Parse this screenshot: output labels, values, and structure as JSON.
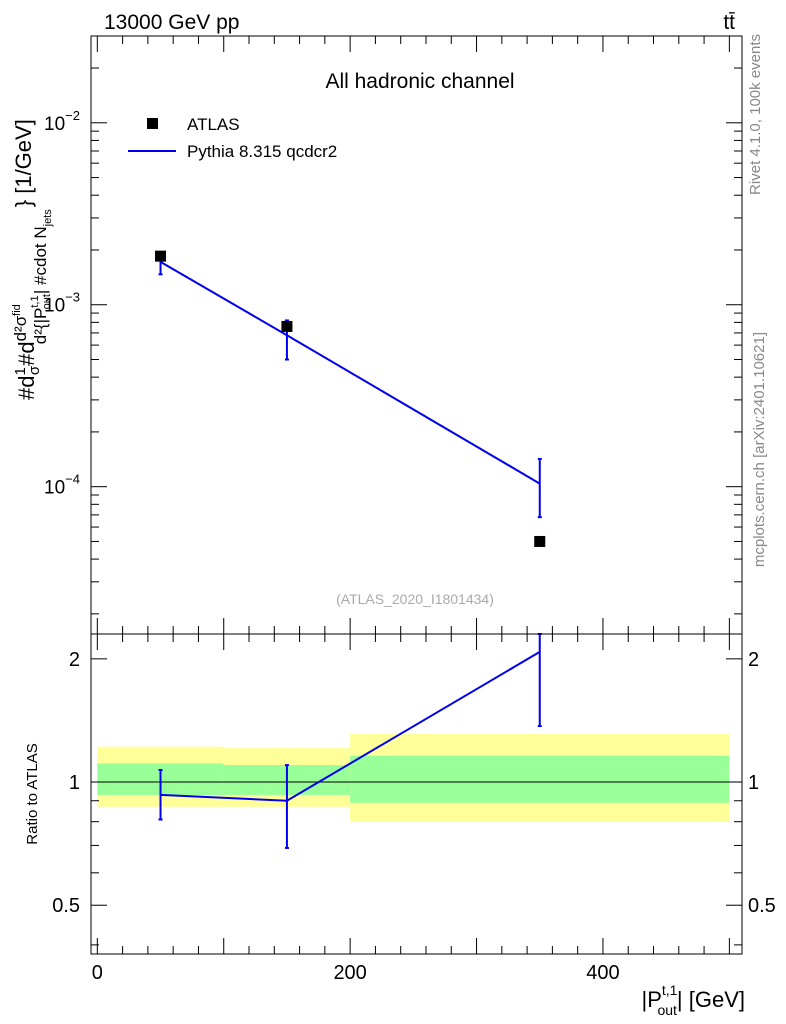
{
  "header": {
    "left_label": "13000 GeV pp",
    "right_label": "tt̄"
  },
  "side_labels": {
    "rivet": "Rivet 4.1.0,  100k events",
    "mcplots": "mcplots.cern.ch [arXiv:2401.10621]"
  },
  "chart_data": [
    {
      "type": "scatter",
      "title": "All hadronic channel",
      "watermark": "(ATLAS_2020_I1801434)",
      "xlabel": "|P_out^{t,1}| [GeV]",
      "ylabel": "#d\\frac{1}{\\sigma}#d\\frac{d^{2}\\sigma^{\\rm fid}}{d^{2}{|P^{t,1}_{out}| #cdot N_{jets}}} [1/GeV]",
      "yscale": "log",
      "xlim": [
        -5,
        510
      ],
      "ylim": [
        1.55e-05,
        0.03
      ],
      "ytick_labels": [
        "10^{-4}",
        "10^{-3}",
        "10^{-2}"
      ],
      "ytick_values": [
        0.0001,
        0.001,
        0.01
      ],
      "legend": [
        "ATLAS",
        "Pythia 8.315 qcdcr2"
      ],
      "series": [
        {
          "name": "ATLAS",
          "kind": "points",
          "color": "#000000",
          "x": [
            50,
            150,
            350
          ],
          "y": [
            0.00185,
            0.00076,
            5e-05
          ],
          "x_bins": [
            [
              0,
              100
            ],
            [
              100,
              200
            ],
            [
              200,
              500
            ]
          ]
        },
        {
          "name": "Pythia 8.315 qcdcr2",
          "kind": "line",
          "color": "#0000ee",
          "x": [
            50,
            150,
            350
          ],
          "y": [
            0.00172,
            0.00068,
            0.000104
          ],
          "yerr_low": [
            0.00147,
            0.0005,
            6.8e-05
          ],
          "yerr_high": [
            0.0019,
            0.00082,
            0.000142
          ]
        }
      ]
    },
    {
      "type": "line",
      "ylabel": "Ratio to ATLAS",
      "xlabel": "|P_out^{t,1}| [GeV]",
      "xlim": [
        -5,
        510
      ],
      "ylim": [
        0.38,
        2.3
      ],
      "xtick_labels": [
        "0",
        "200",
        "400"
      ],
      "xtick_values": [
        0,
        200,
        400
      ],
      "ytick_labels": [
        "0.5",
        "1",
        "2"
      ],
      "ytick_values": [
        0.5,
        1,
        2
      ],
      "bands": [
        {
          "x0": 0,
          "x1": 100,
          "stat_low": 0.93,
          "stat_high": 1.11,
          "total_low": 0.87,
          "total_high": 1.22
        },
        {
          "x0": 100,
          "x1": 200,
          "stat_low": 0.93,
          "stat_high": 1.1,
          "total_low": 0.87,
          "total_high": 1.21
        },
        {
          "x0": 200,
          "x1": 500,
          "stat_low": 0.89,
          "stat_high": 1.16,
          "total_low": 0.8,
          "total_high": 1.31
        }
      ],
      "band_colors": {
        "stat": "#99ff99",
        "total": "#ffff99"
      },
      "series": [
        {
          "name": "Pythia 8.315 qcdcr2",
          "color": "#0000ee",
          "x": [
            50,
            150,
            350
          ],
          "y": [
            0.93,
            0.9,
            2.08
          ],
          "yerr_low": [
            0.81,
            0.69,
            1.37
          ],
          "yerr_high": [
            1.07,
            1.1,
            2.3
          ]
        }
      ]
    }
  ]
}
